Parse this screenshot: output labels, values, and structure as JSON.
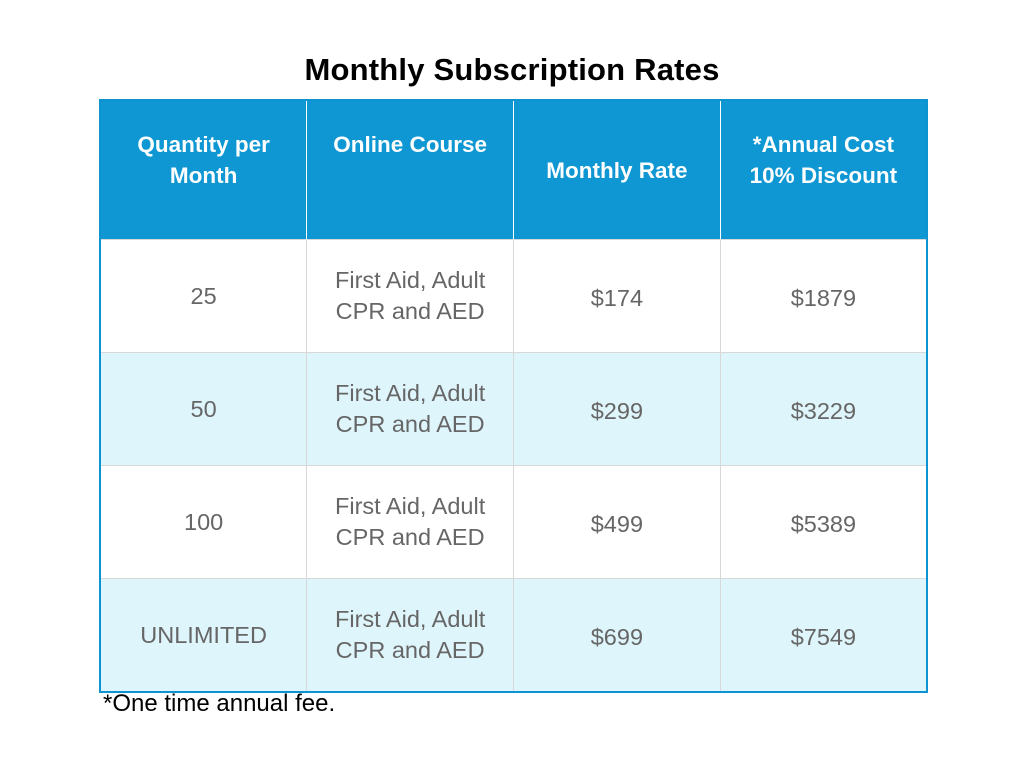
{
  "title": "Monthly Subscription Rates",
  "table": {
    "headers": [
      "Quantity per Month",
      "Online Course",
      "Monthly Rate",
      "*Annual Cost 10% Discount"
    ],
    "rows": [
      {
        "quantity": "25",
        "course_line1": "First Aid, Adult",
        "course_line2": "CPR and AED",
        "monthly": "$174",
        "annual": "$1879"
      },
      {
        "quantity": "50",
        "course_line1": "First Aid, Adult",
        "course_line2": "CPR and AED",
        "monthly": "$299",
        "annual": "$3229"
      },
      {
        "quantity": "100",
        "course_line1": "First Aid, Adult",
        "course_line2": "CPR and AED",
        "monthly": "$499",
        "annual": "$5389"
      },
      {
        "quantity": "UNLIMITED",
        "course_line1": "First Aid, Adult",
        "course_line2": "CPR and AED",
        "monthly": "$699",
        "annual": "$7549"
      }
    ]
  },
  "footnote": "*One time annual fee.",
  "colors": {
    "header_background": "#0e97d2",
    "header_text": "#ffffff",
    "alternate_row": "#dff5fc",
    "body_text": "#666666"
  }
}
